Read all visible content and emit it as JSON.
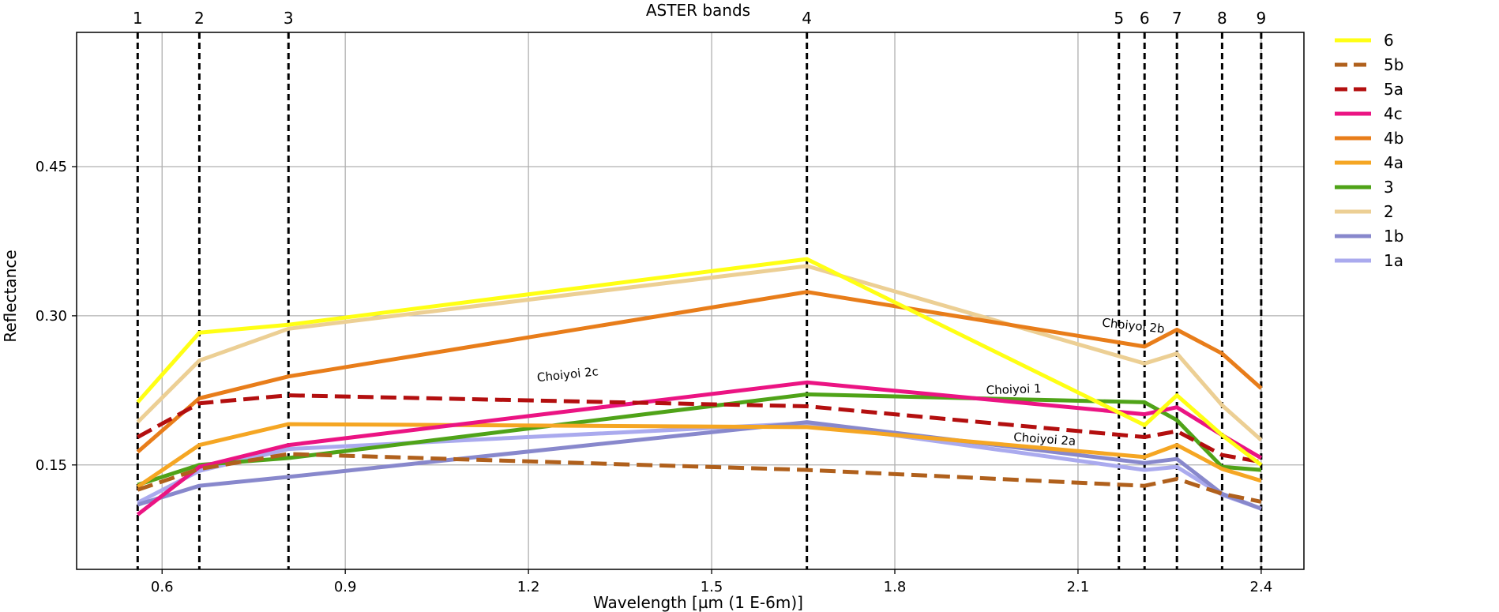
{
  "chart_data": {
    "type": "line",
    "title": "ASTER bands",
    "xlabel": "Wavelength [µm (1 E-6m)]",
    "ylabel": "Reflectance",
    "xlim": [
      0.46,
      2.47
    ],
    "ylim": [
      0.045,
      0.585
    ],
    "xticks": [
      0.6,
      0.9,
      1.2,
      1.5,
      1.8,
      2.1,
      2.4
    ],
    "xtick_labels": [
      "0.6",
      "0.9",
      "1.2",
      "1.5",
      "1.8",
      "2.1",
      "2.4"
    ],
    "yticks": [
      0.15,
      0.3,
      0.45
    ],
    "ytick_labels": [
      "0.15",
      "0.30",
      "0.45"
    ],
    "grid": true,
    "legend_position": "outside-top-right",
    "bands": [
      {
        "label": "1",
        "x": 0.56
      },
      {
        "label": "2",
        "x": 0.661
      },
      {
        "label": "3",
        "x": 0.807
      },
      {
        "label": "4",
        "x": 1.656
      },
      {
        "label": "5",
        "x": 2.167
      },
      {
        "label": "6",
        "x": 2.209
      },
      {
        "label": "7",
        "x": 2.262
      },
      {
        "label": "8",
        "x": 2.336
      },
      {
        "label": "9",
        "x": 2.4
      }
    ],
    "x": [
      0.56,
      0.661,
      0.807,
      1.656,
      2.209,
      2.262,
      2.336,
      2.4
    ],
    "series": [
      {
        "name": "6",
        "color": "#ffff14",
        "dash": "solid",
        "values": [
          0.213,
          0.283,
          0.291,
          0.357,
          0.19,
          0.22,
          0.18,
          0.15
        ]
      },
      {
        "name": "5b",
        "color": "#b0601c",
        "dash": "dashed",
        "values": [
          0.125,
          0.146,
          0.161,
          0.145,
          0.129,
          0.136,
          0.121,
          0.113
        ]
      },
      {
        "name": "5a",
        "color": "#b30f0f",
        "dash": "dashed",
        "values": [
          0.178,
          0.212,
          0.22,
          0.209,
          0.178,
          0.184,
          0.16,
          0.153
        ]
      },
      {
        "name": "4c",
        "color": "#eb1483",
        "dash": "solid",
        "values": [
          0.1,
          0.148,
          0.17,
          0.233,
          0.201,
          0.208,
          0.18,
          0.157
        ]
      },
      {
        "name": "4b",
        "color": "#e87d1a",
        "dash": "solid",
        "values": [
          0.163,
          0.217,
          0.239,
          0.324,
          0.269,
          0.286,
          0.262,
          0.227
        ]
      },
      {
        "name": "4a",
        "color": "#f5a623",
        "dash": "solid",
        "values": [
          0.128,
          0.17,
          0.191,
          0.188,
          0.158,
          0.17,
          0.146,
          0.134
        ]
      },
      {
        "name": "3",
        "color": "#4fa318",
        "dash": "solid",
        "values": [
          0.13,
          0.15,
          0.157,
          0.221,
          0.213,
          0.195,
          0.148,
          0.145
        ]
      },
      {
        "name": "2",
        "color": "#eccf94",
        "dash": "solid",
        "values": [
          0.193,
          0.255,
          0.287,
          0.35,
          0.252,
          0.262,
          0.21,
          0.175
        ]
      },
      {
        "name": "1b",
        "color": "#8888cc",
        "dash": "solid",
        "values": [
          0.11,
          0.129,
          0.138,
          0.193,
          0.152,
          0.156,
          0.121,
          0.106
        ]
      },
      {
        "name": "1a",
        "color": "#aaaaee",
        "dash": "solid",
        "values": [
          0.112,
          0.144,
          0.166,
          0.192,
          0.145,
          0.148,
          0.12,
          0.106
        ]
      }
    ],
    "annotations": [
      {
        "text": "Choiyoi 2b",
        "x": 2.19,
        "y": 0.286,
        "rotate": 6
      },
      {
        "text": "Choiyoi 2c",
        "x": 1.265,
        "y": 0.237,
        "rotate": -6
      },
      {
        "text": "Choiyoi 1",
        "x": 1.995,
        "y": 0.222,
        "rotate": -2
      },
      {
        "text": "Choiyoi 2a",
        "x": 2.045,
        "y": 0.172,
        "rotate": 4
      }
    ]
  }
}
